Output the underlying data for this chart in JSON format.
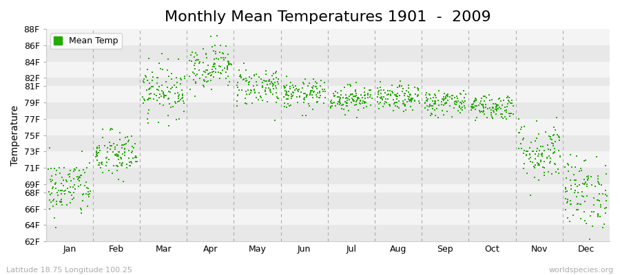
{
  "title": "Monthly Mean Temperatures 1901  -  2009",
  "ylabel": "Temperature",
  "footnote_left": "Latitude 18.75 Longitude 100.25",
  "footnote_right": "worldspecies.org",
  "legend_label": "Mean Temp",
  "marker_color": "#22aa00",
  "bg_color": "#f0f0f0",
  "bg_color_alt": "#e0e0e0",
  "months": [
    "Jan",
    "Feb",
    "Mar",
    "Apr",
    "May",
    "Jun",
    "Jul",
    "Aug",
    "Sep",
    "Oct",
    "Nov",
    "Dec"
  ],
  "month_means": [
    68.5,
    72.5,
    80.5,
    83.5,
    81.0,
    80.0,
    79.5,
    79.5,
    79.0,
    78.5,
    73.0,
    68.0
  ],
  "month_stds": [
    1.8,
    1.5,
    1.6,
    1.4,
    1.2,
    0.9,
    0.8,
    0.8,
    0.8,
    0.8,
    1.9,
    2.2
  ],
  "n_years": 109,
  "random_seed": 42,
  "yticks": [
    62,
    64,
    66,
    68,
    69,
    71,
    73,
    75,
    77,
    79,
    81,
    82,
    84,
    86,
    88
  ],
  "ylim": [
    62,
    88
  ],
  "title_fontsize": 16,
  "tick_fontsize": 9,
  "label_fontsize": 10,
  "footnote_fontsize": 8
}
